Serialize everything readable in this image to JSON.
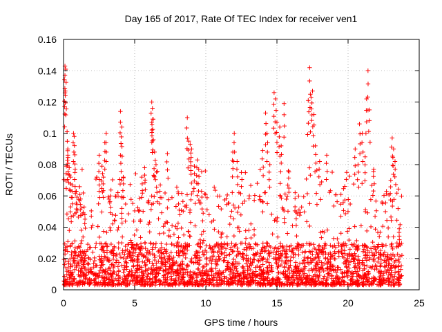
{
  "chart_data": {
    "type": "scatter",
    "title": "Day 165 of 2017, Rate Of TEC Index for receiver ven1",
    "xlabel": "GPS time / hours",
    "ylabel": "ROTI / TECUs",
    "xlim": [
      0,
      25
    ],
    "ylim": [
      0,
      0.16
    ],
    "xticks": [
      0,
      5,
      10,
      15,
      20,
      25
    ],
    "yticks": [
      0,
      0.02,
      0.04,
      0.06,
      0.08,
      0.1,
      0.12,
      0.14,
      0.16
    ],
    "xtick_labels": [
      "0",
      "5",
      "10",
      "15",
      "20",
      "25"
    ],
    "ytick_labels": [
      "0",
      "0.02",
      "0.04",
      "0.06",
      "0.08",
      "0.1",
      "0.12",
      "0.14",
      "0.16"
    ],
    "grid": true,
    "marker": "plus",
    "marker_color": "#ff0000",
    "grid_color": "#a0a0a0",
    "time_range": [
      0,
      23.8
    ],
    "series": [
      {
        "name": "ROTI",
        "points": [
          [
            0.1,
            0.143
          ],
          [
            0.15,
            0.141
          ],
          [
            0.1,
            0.137
          ],
          [
            0.12,
            0.127
          ],
          [
            0.25,
            0.101
          ],
          [
            0.3,
            0.09
          ],
          [
            0.3,
            0.086
          ],
          [
            0.2,
            0.079
          ],
          [
            0.4,
            0.078
          ],
          [
            0.5,
            0.072
          ],
          [
            0.6,
            0.067
          ],
          [
            0.7,
            0.1
          ],
          [
            0.75,
            0.098
          ],
          [
            0.8,
            0.075
          ],
          [
            0.9,
            0.063
          ],
          [
            0.5,
            0.053
          ],
          [
            1.2,
            0.058
          ],
          [
            1.5,
            0.048
          ],
          [
            2.5,
            0.086
          ],
          [
            2.7,
            0.079
          ],
          [
            2.8,
            0.072
          ],
          [
            2.9,
            0.094
          ],
          [
            3.0,
            0.1
          ],
          [
            2.5,
            0.067
          ],
          [
            3.3,
            0.06
          ],
          [
            4.0,
            0.114
          ],
          [
            4.1,
            0.104
          ],
          [
            4.0,
            0.086
          ],
          [
            4.2,
            0.072
          ],
          [
            4.1,
            0.052
          ],
          [
            5.5,
            0.072
          ],
          [
            5.7,
            0.078
          ],
          [
            6.2,
            0.12
          ],
          [
            6.25,
            0.116
          ],
          [
            6.3,
            0.109
          ],
          [
            6.2,
            0.107
          ],
          [
            6.4,
            0.088
          ],
          [
            6.5,
            0.08
          ],
          [
            6.8,
            0.067
          ],
          [
            7.3,
            0.087
          ],
          [
            8.7,
            0.11
          ],
          [
            8.8,
            0.095
          ],
          [
            8.9,
            0.093
          ],
          [
            9.0,
            0.09
          ],
          [
            9.2,
            0.079
          ],
          [
            9.4,
            0.083
          ],
          [
            9.5,
            0.077
          ],
          [
            9.7,
            0.063
          ],
          [
            11.9,
            0.088
          ],
          [
            12.0,
            0.1
          ],
          [
            12.2,
            0.082
          ],
          [
            12.5,
            0.075
          ],
          [
            14.0,
            0.089
          ],
          [
            14.2,
            0.113
          ],
          [
            14.3,
            0.1
          ],
          [
            14.5,
            0.08
          ],
          [
            14.8,
            0.126
          ],
          [
            14.9,
            0.122
          ],
          [
            15.0,
            0.107
          ],
          [
            15.2,
            0.104
          ],
          [
            15.3,
            0.092
          ],
          [
            15.5,
            0.119
          ],
          [
            15.8,
            0.076
          ],
          [
            17.2,
            0.121
          ],
          [
            17.3,
            0.142
          ],
          [
            17.4,
            0.123
          ],
          [
            17.5,
            0.127
          ],
          [
            17.6,
            0.112
          ],
          [
            17.7,
            0.092
          ],
          [
            18.0,
            0.082
          ],
          [
            18.5,
            0.086
          ],
          [
            20.8,
            0.106
          ],
          [
            21.0,
            0.1
          ],
          [
            21.2,
            0.085
          ],
          [
            21.4,
            0.14
          ],
          [
            21.3,
            0.122
          ],
          [
            21.5,
            0.115
          ],
          [
            20.5,
            0.09
          ],
          [
            20.7,
            0.08
          ],
          [
            21.8,
            0.077
          ],
          [
            23.1,
            0.097
          ],
          [
            23.2,
            0.09
          ],
          [
            23.3,
            0.082
          ],
          [
            23.0,
            0.07
          ],
          [
            23.6,
            0.039
          ]
        ]
      }
    ],
    "baseline_band": {
      "description": "dense cloud of points between 0.003 and 0.03 across all hours",
      "y_min": 0.003,
      "y_typical": 0.015,
      "y_dense_max": 0.03
    }
  }
}
